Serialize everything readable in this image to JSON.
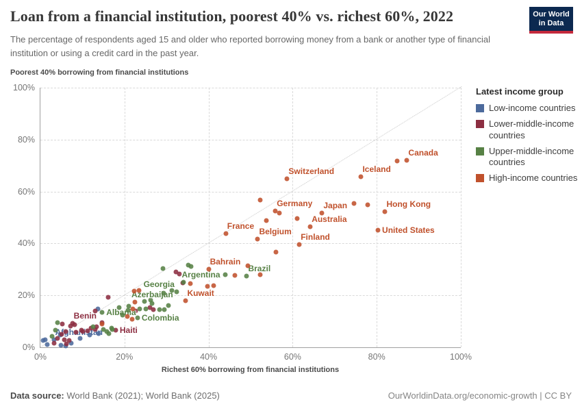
{
  "header": {
    "title": "Loan from a financial institution, poorest 40% vs. richest 60%, 2022",
    "subtitle": "The percentage of respondents aged 15 and older who reported borrowing money from a bank or another type of financial institution or using a credit card in the past year.",
    "logo_line1": "Our World",
    "logo_line2": "in Data",
    "logo_bg": "#0c2950",
    "logo_stripe": "#c4293c"
  },
  "footer": {
    "source_label": "Data source:",
    "source_value": " World Bank (2021); World Bank (2025)",
    "link": "OurWorldinData.org/economic-growth | CC BY"
  },
  "chart_data": {
    "type": "scatter",
    "title": "Loan from a financial institution, poorest 40% vs. richest 60%, 2022",
    "xlabel": "Richest 60% borrowing from financial institutions",
    "ylabel": "Poorest 40% borrowing from financial institutions",
    "xlim": [
      0,
      100
    ],
    "ylim": [
      0,
      100
    ],
    "xticks": [
      0,
      20,
      40,
      60,
      80,
      100
    ],
    "yticks": [
      0,
      20,
      40,
      60,
      80,
      100
    ],
    "tick_suffix": "%",
    "grid": "dashed",
    "diagonal_reference_line": true,
    "legend_position": "right",
    "legend_title": "Latest income group",
    "legend_order": [
      "low",
      "lower_middle",
      "upper_middle",
      "high"
    ],
    "groups": {
      "low": {
        "label": "Low-income countries",
        "color": "#4C6A9C"
      },
      "lower_middle": {
        "label": "Lower-middle-income countries",
        "color": "#8C2E41"
      },
      "upper_middle": {
        "label": "Upper-middle-income countries",
        "color": "#578145"
      },
      "high": {
        "label": "High-income countries",
        "color": "#C0512C"
      }
    },
    "points": [
      {
        "x": 0.7,
        "y": 2.6,
        "g": "low"
      },
      {
        "x": 1.1,
        "y": 2.9,
        "g": "low"
      },
      {
        "x": 1.6,
        "y": 1.1,
        "g": "low"
      },
      {
        "x": 3.2,
        "y": 2.8,
        "g": "low",
        "label": "Afghanistan",
        "pos": "ar"
      },
      {
        "x": 4.7,
        "y": 4.7,
        "g": "low"
      },
      {
        "x": 4.9,
        "y": 0.9,
        "g": "low"
      },
      {
        "x": 6.1,
        "y": 0.5,
        "g": "low"
      },
      {
        "x": 7.3,
        "y": 1.5,
        "g": "low"
      },
      {
        "x": 9.5,
        "y": 3.3,
        "g": "low"
      },
      {
        "x": 11.7,
        "y": 4.7,
        "g": "low"
      },
      {
        "x": 13.8,
        "y": 5.3,
        "g": "low"
      },
      {
        "x": 13.7,
        "y": 14.8,
        "g": "low"
      },
      {
        "x": 3.3,
        "y": 1.6,
        "g": "lower_middle"
      },
      {
        "x": 4.1,
        "y": 3.4,
        "g": "lower_middle"
      },
      {
        "x": 5.0,
        "y": 5.1,
        "g": "lower_middle"
      },
      {
        "x": 5.2,
        "y": 8.9,
        "g": "lower_middle"
      },
      {
        "x": 5.7,
        "y": 2.9,
        "g": "lower_middle"
      },
      {
        "x": 6.0,
        "y": 6.1,
        "g": "lower_middle"
      },
      {
        "x": 6.2,
        "y": 1.3,
        "g": "lower_middle"
      },
      {
        "x": 6.8,
        "y": 2.6,
        "g": "lower_middle"
      },
      {
        "x": 7.2,
        "y": 8.2,
        "g": "lower_middle"
      },
      {
        "x": 7.6,
        "y": 9.3,
        "g": "lower_middle",
        "label": "Benin",
        "pos": "ar"
      },
      {
        "x": 8.1,
        "y": 8.7,
        "g": "lower_middle"
      },
      {
        "x": 8.5,
        "y": 5.8,
        "g": "lower_middle"
      },
      {
        "x": 9.8,
        "y": 6.6,
        "g": "lower_middle"
      },
      {
        "x": 10.1,
        "y": 6.1,
        "g": "lower_middle"
      },
      {
        "x": 11.2,
        "y": 6.4,
        "g": "lower_middle"
      },
      {
        "x": 12.0,
        "y": 7.4,
        "g": "lower_middle"
      },
      {
        "x": 13.0,
        "y": 6.8,
        "g": "lower_middle"
      },
      {
        "x": 13.0,
        "y": 13.9,
        "g": "lower_middle"
      },
      {
        "x": 13.3,
        "y": 7.9,
        "g": "lower_middle"
      },
      {
        "x": 14.6,
        "y": 9.5,
        "g": "lower_middle"
      },
      {
        "x": 16.1,
        "y": 19.2,
        "g": "lower_middle"
      },
      {
        "x": 17.9,
        "y": 6.6,
        "g": "lower_middle",
        "label": "Haiti",
        "pos": "r"
      },
      {
        "x": 22.6,
        "y": 13.9,
        "g": "lower_middle"
      },
      {
        "x": 26.0,
        "y": 15.3,
        "g": "lower_middle"
      },
      {
        "x": 26.8,
        "y": 14.5,
        "g": "lower_middle"
      },
      {
        "x": 33.8,
        "y": 24.7,
        "g": "lower_middle"
      },
      {
        "x": 32.2,
        "y": 28.9,
        "g": "lower_middle"
      },
      {
        "x": 33.1,
        "y": 28.3,
        "g": "lower_middle"
      },
      {
        "x": 2.8,
        "y": 4.2,
        "g": "upper_middle"
      },
      {
        "x": 3.6,
        "y": 6.6,
        "g": "upper_middle"
      },
      {
        "x": 4.1,
        "y": 9.5,
        "g": "upper_middle"
      },
      {
        "x": 12.5,
        "y": 7.9,
        "g": "upper_middle"
      },
      {
        "x": 15.0,
        "y": 6.8,
        "g": "upper_middle"
      },
      {
        "x": 15.8,
        "y": 6.1,
        "g": "upper_middle"
      },
      {
        "x": 16.3,
        "y": 5.3,
        "g": "upper_middle"
      },
      {
        "x": 16.9,
        "y": 7.4,
        "g": "upper_middle"
      },
      {
        "x": 17.1,
        "y": 6.8,
        "g": "upper_middle"
      },
      {
        "x": 14.7,
        "y": 13.4,
        "g": "upper_middle",
        "label": "Albania",
        "pos": "r"
      },
      {
        "x": 18.7,
        "y": 15.3,
        "g": "upper_middle"
      },
      {
        "x": 19.5,
        "y": 12.3,
        "g": "upper_middle"
      },
      {
        "x": 20.9,
        "y": 14.2,
        "g": "upper_middle"
      },
      {
        "x": 21.0,
        "y": 15.8,
        "g": "upper_middle"
      },
      {
        "x": 23.1,
        "y": 11.3,
        "g": "upper_middle",
        "label": "Colombia",
        "pos": "r"
      },
      {
        "x": 23.6,
        "y": 14.7,
        "g": "upper_middle"
      },
      {
        "x": 25.0,
        "y": 14.7,
        "g": "upper_middle"
      },
      {
        "x": 28.3,
        "y": 14.5,
        "g": "upper_middle"
      },
      {
        "x": 29.4,
        "y": 14.5,
        "g": "upper_middle"
      },
      {
        "x": 24.7,
        "y": 17.6,
        "g": "upper_middle"
      },
      {
        "x": 26.3,
        "y": 18.2,
        "g": "upper_middle"
      },
      {
        "x": 26.6,
        "y": 16.9,
        "g": "upper_middle",
        "label": "Azerbaijan",
        "pos": "a"
      },
      {
        "x": 30.5,
        "y": 16.2,
        "g": "upper_middle"
      },
      {
        "x": 29.3,
        "y": 20.8,
        "g": "upper_middle"
      },
      {
        "x": 31.2,
        "y": 21.8,
        "g": "upper_middle"
      },
      {
        "x": 32.4,
        "y": 21.3,
        "g": "upper_middle",
        "label": "Georgia",
        "pos": "al"
      },
      {
        "x": 29.1,
        "y": 30.3,
        "g": "upper_middle"
      },
      {
        "x": 34.0,
        "y": 25.0,
        "g": "upper_middle"
      },
      {
        "x": 35.1,
        "y": 31.6,
        "g": "upper_middle"
      },
      {
        "x": 35.9,
        "y": 31.1,
        "g": "upper_middle"
      },
      {
        "x": 43.9,
        "y": 27.9,
        "g": "upper_middle",
        "label": "Argentina",
        "pos": "l"
      },
      {
        "x": 49.1,
        "y": 27.4,
        "g": "upper_middle",
        "label": "Brazil",
        "pos": "ar"
      },
      {
        "x": 14.6,
        "y": 8.9,
        "g": "high"
      },
      {
        "x": 20.7,
        "y": 11.8,
        "g": "high"
      },
      {
        "x": 21.8,
        "y": 10.8,
        "g": "high"
      },
      {
        "x": 22.0,
        "y": 14.7,
        "g": "high"
      },
      {
        "x": 22.4,
        "y": 17.4,
        "g": "high"
      },
      {
        "x": 22.3,
        "y": 21.6,
        "g": "high"
      },
      {
        "x": 23.4,
        "y": 21.8,
        "g": "high"
      },
      {
        "x": 34.6,
        "y": 18.0,
        "g": "high",
        "label": "Kuwait",
        "pos": "ar"
      },
      {
        "x": 35.6,
        "y": 24.5,
        "g": "high"
      },
      {
        "x": 39.8,
        "y": 23.4,
        "g": "high"
      },
      {
        "x": 41.2,
        "y": 23.7,
        "g": "high"
      },
      {
        "x": 40.0,
        "y": 30.2,
        "g": "high",
        "label": "Bahrain",
        "pos": "ar"
      },
      {
        "x": 46.2,
        "y": 27.6,
        "g": "high"
      },
      {
        "x": 49.4,
        "y": 31.4,
        "g": "high"
      },
      {
        "x": 52.3,
        "y": 27.9,
        "g": "high"
      },
      {
        "x": 44.1,
        "y": 43.9,
        "g": "high",
        "label": "France",
        "pos": "ar"
      },
      {
        "x": 51.7,
        "y": 41.8,
        "g": "high",
        "label": "Belgium",
        "pos": "ar"
      },
      {
        "x": 56.1,
        "y": 36.8,
        "g": "high"
      },
      {
        "x": 61.6,
        "y": 39.5,
        "g": "high",
        "label": "Finland",
        "pos": "ar"
      },
      {
        "x": 53.7,
        "y": 48.7,
        "g": "high"
      },
      {
        "x": 55.9,
        "y": 52.4,
        "g": "high",
        "label": "Germany",
        "pos": "ar"
      },
      {
        "x": 56.8,
        "y": 51.7,
        "g": "high"
      },
      {
        "x": 61.0,
        "y": 49.7,
        "g": "high"
      },
      {
        "x": 64.2,
        "y": 46.4,
        "g": "high",
        "label": "Australia",
        "pos": "ar"
      },
      {
        "x": 67.0,
        "y": 51.8,
        "g": "high",
        "label": "Japan",
        "pos": "ar"
      },
      {
        "x": 52.2,
        "y": 56.6,
        "g": "high"
      },
      {
        "x": 58.7,
        "y": 65.0,
        "g": "high",
        "label": "Switzerland",
        "pos": "ar"
      },
      {
        "x": 74.6,
        "y": 55.3,
        "g": "high"
      },
      {
        "x": 77.9,
        "y": 55.0,
        "g": "high"
      },
      {
        "x": 76.3,
        "y": 65.8,
        "g": "high",
        "label": "Iceland",
        "pos": "ar"
      },
      {
        "x": 80.3,
        "y": 45.0,
        "g": "high",
        "label": "United States",
        "pos": "r"
      },
      {
        "x": 82.0,
        "y": 52.3,
        "g": "high",
        "label": "Hong Kong",
        "pos": "ar"
      },
      {
        "x": 84.9,
        "y": 71.8,
        "g": "high"
      },
      {
        "x": 87.2,
        "y": 72.1,
        "g": "high",
        "label": "Canada",
        "pos": "ar"
      }
    ]
  }
}
